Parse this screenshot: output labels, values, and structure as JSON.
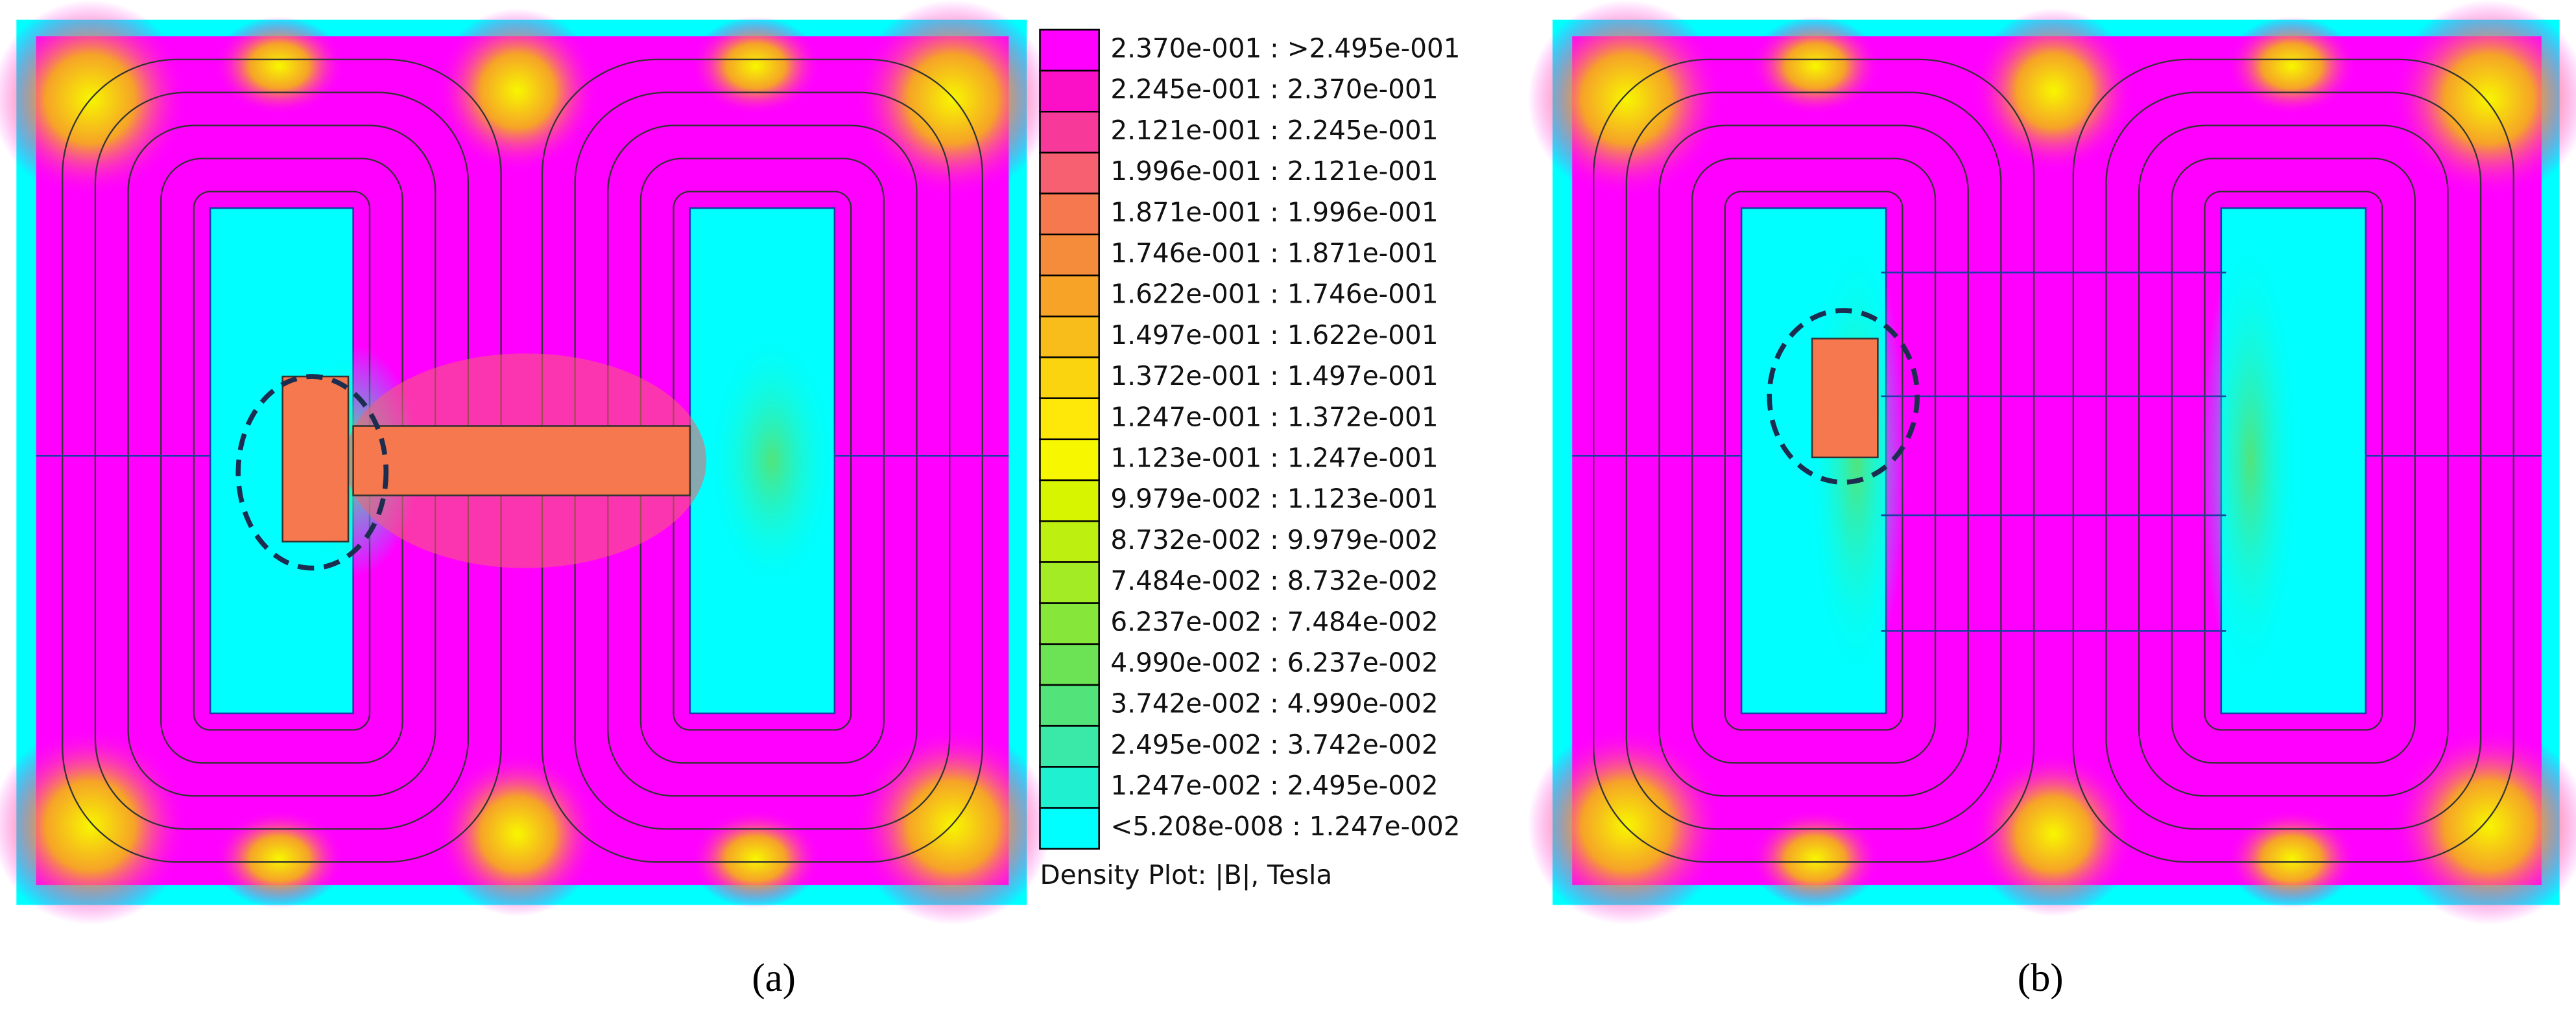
{
  "legend": {
    "entries": [
      {
        "label": "2.370e-001 : >2.495e-001",
        "color": "#ff00ff"
      },
      {
        "label": "2.245e-001 : 2.370e-001",
        "color": "#fb10c8"
      },
      {
        "label": "2.121e-001 : 2.245e-001",
        "color": "#f73a9a"
      },
      {
        "label": "1.996e-001 : 2.121e-001",
        "color": "#f76070"
      },
      {
        "label": "1.871e-001 : 1.996e-001",
        "color": "#f5784e"
      },
      {
        "label": "1.746e-001 : 1.871e-001",
        "color": "#f48c3c"
      },
      {
        "label": "1.622e-001 : 1.746e-001",
        "color": "#f6a328"
      },
      {
        "label": "1.497e-001 : 1.622e-001",
        "color": "#f8bd1a"
      },
      {
        "label": "1.372e-001 : 1.497e-001",
        "color": "#fbd410"
      },
      {
        "label": "1.247e-001 : 1.372e-001",
        "color": "#fde80a"
      },
      {
        "label": "1.123e-001 : 1.247e-001",
        "color": "#f7f700"
      },
      {
        "label": "9.979e-002 : 1.123e-001",
        "color": "#d8f500"
      },
      {
        "label": "8.732e-002 : 9.979e-002",
        "color": "#bdf010"
      },
      {
        "label": "7.484e-002 : 8.732e-002",
        "color": "#a2eb25"
      },
      {
        "label": "6.237e-002 : 7.484e-002",
        "color": "#86e63a"
      },
      {
        "label": "4.990e-002 : 6.237e-002",
        "color": "#6ce255"
      },
      {
        "label": "3.742e-002 : 4.990e-002",
        "color": "#52e47a"
      },
      {
        "label": "2.495e-002 : 3.742e-002",
        "color": "#3ae8a8"
      },
      {
        "label": "1.247e-002 : 2.495e-002",
        "color": "#1ff0d0"
      },
      {
        "label": "<5.208e-008 : 1.247e-002",
        "color": "#00ffff"
      }
    ],
    "caption": "Density Plot: |B|, Tesla"
  },
  "panels": [
    {
      "label": "(a)"
    },
    {
      "label": "(b)"
    }
  ]
}
